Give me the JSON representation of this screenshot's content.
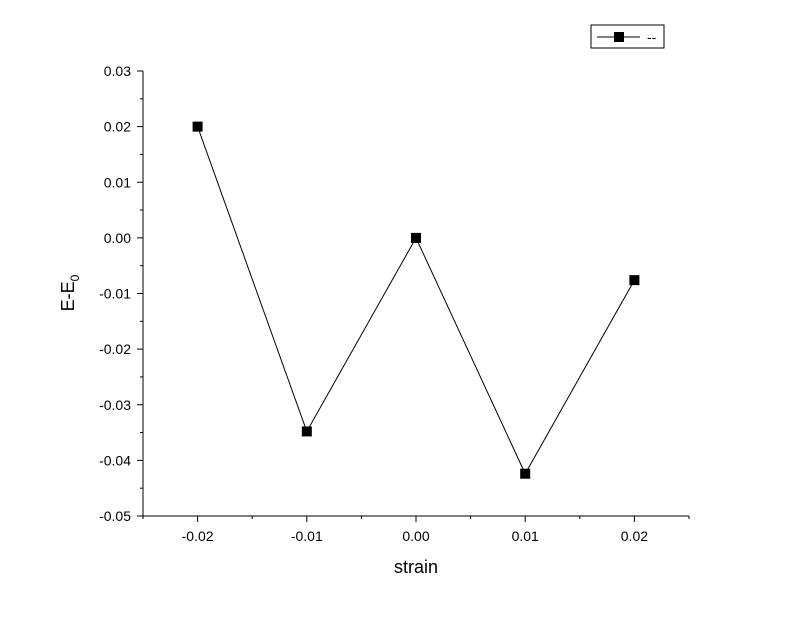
{
  "chart_data": {
    "type": "line",
    "xlabel": "strain",
    "ylabel": "E-E",
    "ylabel_subscript": "0",
    "x": [
      -0.02,
      -0.01,
      0.0,
      0.01,
      0.02
    ],
    "series": [
      {
        "name": "--",
        "values": [
          0.02,
          -0.0348,
          0.0,
          -0.0424,
          -0.0076
        ],
        "marker": "square",
        "color": "#000000"
      }
    ],
    "xlim": [
      -0.025,
      0.025
    ],
    "ylim": [
      -0.05,
      0.03
    ],
    "x_ticks": [
      "-0.02",
      "-0.01",
      "0.00",
      "0.01",
      "0.02"
    ],
    "x_tick_values": [
      -0.02,
      -0.01,
      0.0,
      0.01,
      0.02
    ],
    "y_ticks": [
      "0.03",
      "0.02",
      "0.01",
      "0.00",
      "-0.01",
      "-0.02",
      "-0.03",
      "-0.04",
      "-0.05"
    ],
    "y_tick_values": [
      0.03,
      0.02,
      0.01,
      0.0,
      -0.01,
      -0.02,
      -0.03,
      -0.04,
      -0.05
    ],
    "grid": false,
    "legend_position": "top-right"
  }
}
